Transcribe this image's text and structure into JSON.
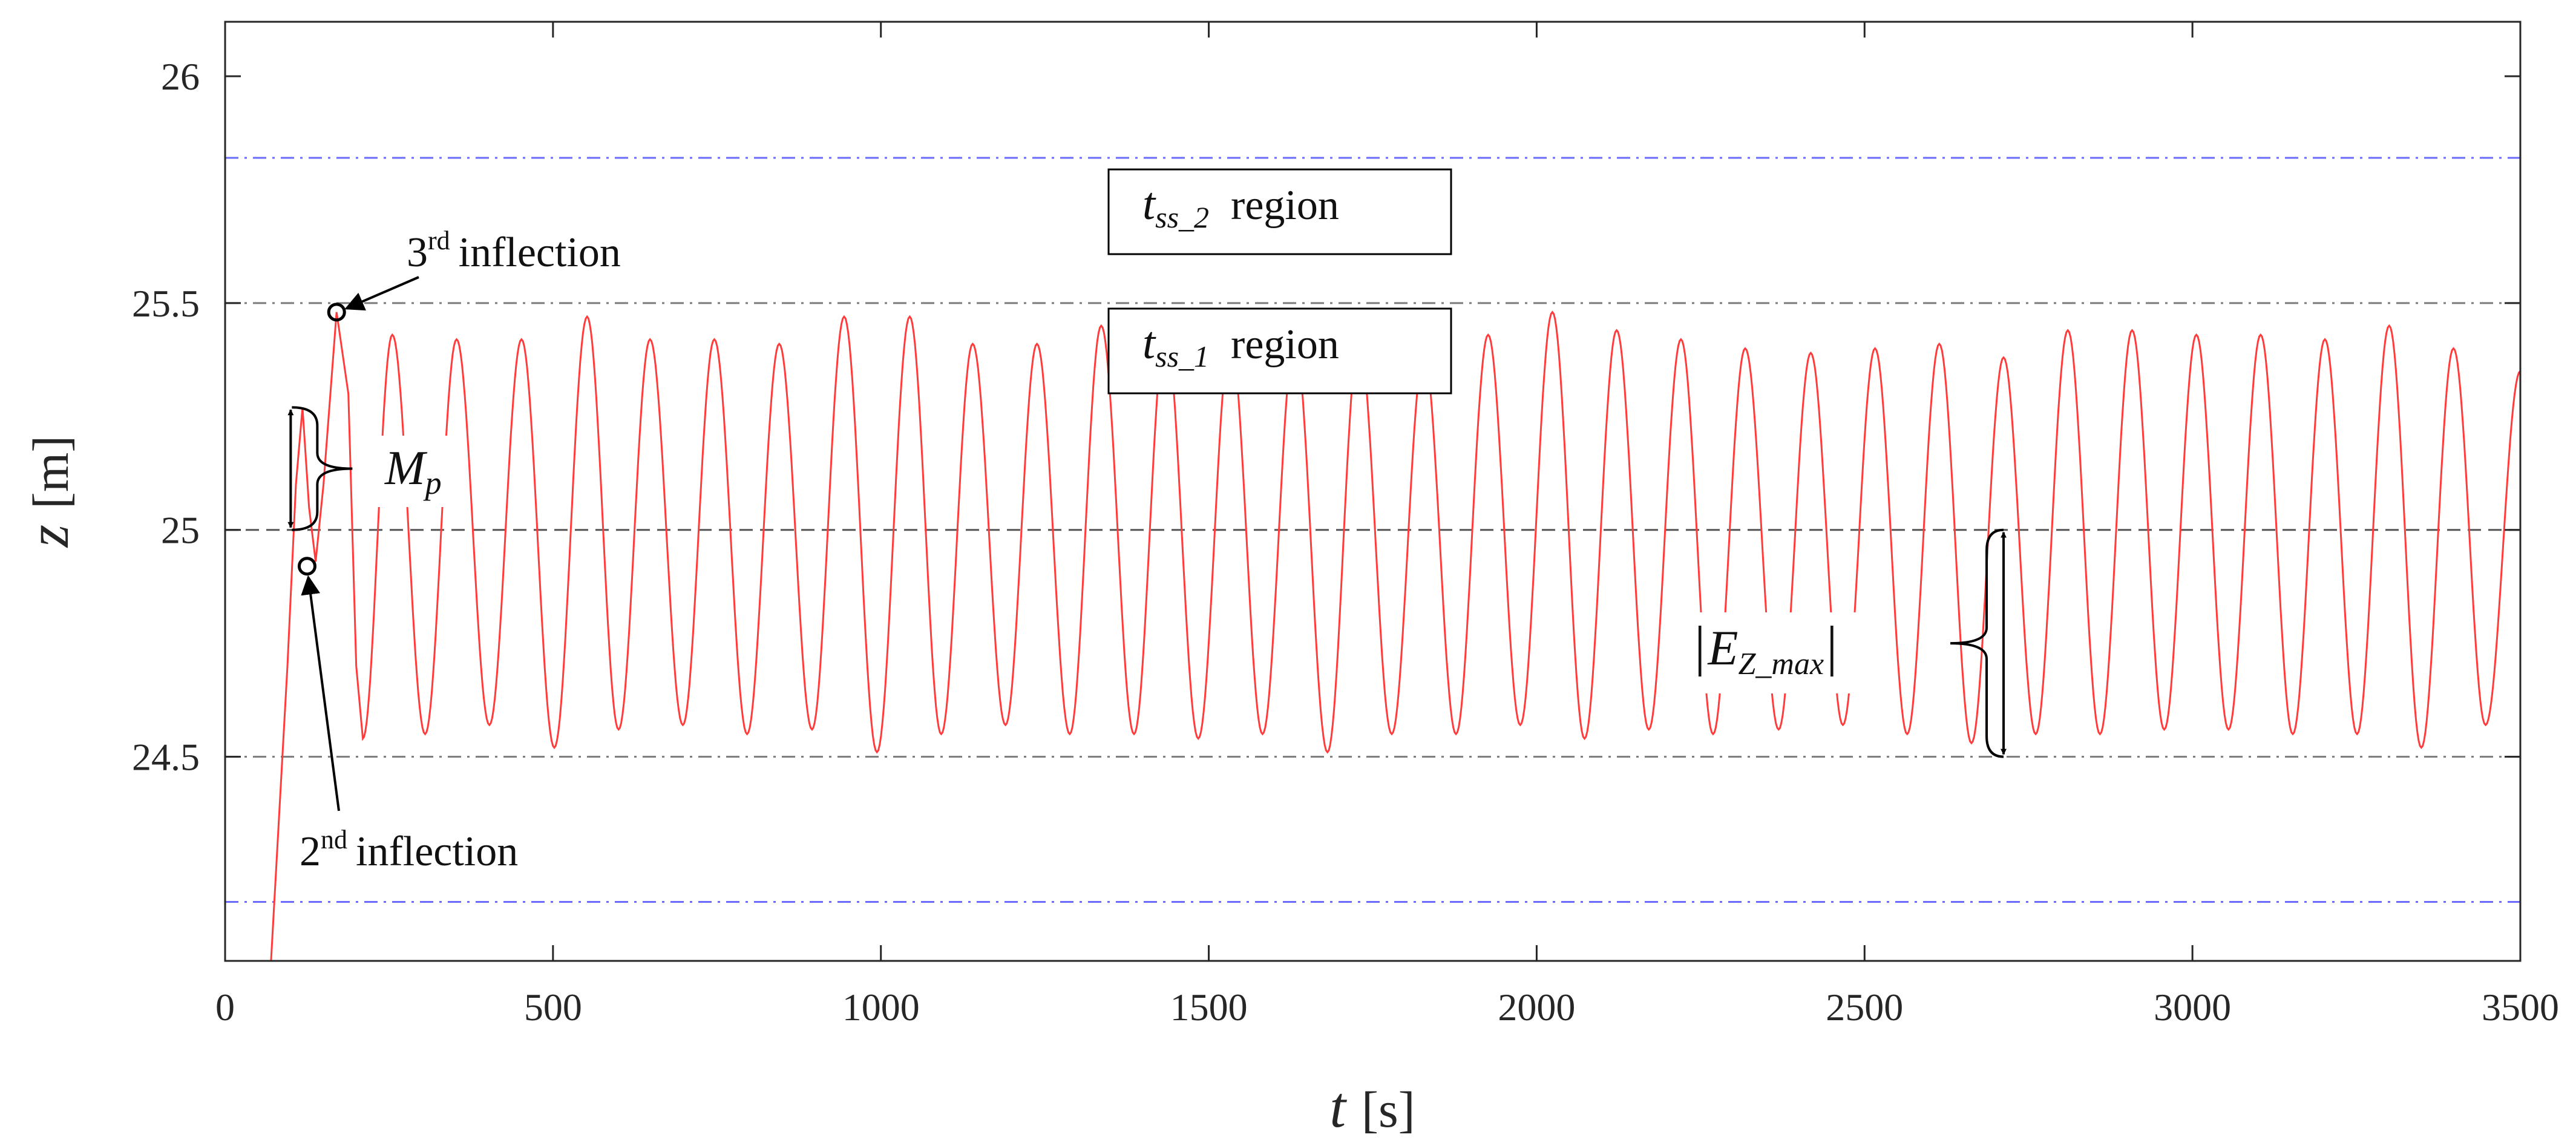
{
  "chart_data": {
    "type": "line",
    "title": "",
    "xlabel": {
      "var": "t",
      "unit": "[s]"
    },
    "ylabel": {
      "var": "z",
      "unit": "[m]"
    },
    "xlim": [
      0,
      3500
    ],
    "ylim": [
      24.05,
      26.12
    ],
    "xticks": [
      0,
      500,
      1000,
      1500,
      2000,
      2500,
      3000,
      3500
    ],
    "xtick_labels": [
      "0",
      "500",
      "1000",
      "1500",
      "2000",
      "2500",
      "3000",
      "3500"
    ],
    "yticks": [
      24.5,
      25,
      25.5,
      26
    ],
    "ytick_labels": [
      "24.5",
      "25",
      "25.5",
      "26"
    ],
    "grid": false,
    "colors": {
      "signal": "#ff3b3b",
      "blue_bounds": "#6b6bff",
      "gray_bounds": "#7a7a7a",
      "setpoint": "#555555"
    },
    "reference_lines": [
      {
        "y": 25.0,
        "style": "dashed",
        "color": "#555555"
      },
      {
        "y": 25.5,
        "style": "dash-dot",
        "color": "#7a7a7a"
      },
      {
        "y": 24.5,
        "style": "dash-dot",
        "color": "#7a7a7a"
      },
      {
        "y": 25.82,
        "style": "dash-dot",
        "color": "#6b6bff"
      },
      {
        "y": 24.18,
        "style": "dash-dot",
        "color": "#6b6bff"
      }
    ],
    "series": [
      {
        "color": "#ff3b3b",
        "initial_rise": [
          [
            70,
            24.05
          ],
          [
            95,
            24.7
          ],
          [
            108,
            25.1
          ],
          [
            118,
            25.27
          ],
          [
            128,
            25.05
          ],
          [
            138,
            24.93
          ],
          [
            150,
            25.1
          ],
          [
            170,
            25.48
          ],
          [
            188,
            25.3
          ],
          [
            200,
            24.7
          ],
          [
            210,
            24.54
          ]
        ],
        "peaks": [
          [
            255,
            25.43
          ],
          [
            353,
            25.42
          ],
          [
            452,
            25.42
          ],
          [
            552,
            25.47
          ],
          [
            648,
            25.42
          ],
          [
            746,
            25.42
          ],
          [
            845,
            25.41
          ],
          [
            944,
            25.47
          ],
          [
            1044,
            25.47
          ],
          [
            1140,
            25.41
          ],
          [
            1238,
            25.41
          ],
          [
            1336,
            25.45
          ],
          [
            1434,
            25.44
          ],
          [
            1533,
            25.42
          ],
          [
            1631,
            25.42
          ],
          [
            1729,
            25.42
          ],
          [
            1828,
            25.39
          ],
          [
            1926,
            25.43
          ],
          [
            2024,
            25.48
          ],
          [
            2122,
            25.44
          ],
          [
            2220,
            25.42
          ],
          [
            2318,
            25.4
          ],
          [
            2418,
            25.39
          ],
          [
            2516,
            25.4
          ],
          [
            2614,
            25.41
          ],
          [
            2712,
            25.38
          ],
          [
            2810,
            25.44
          ],
          [
            2908,
            25.44
          ],
          [
            3006,
            25.43
          ],
          [
            3104,
            25.43
          ],
          [
            3202,
            25.42
          ],
          [
            3300,
            25.45
          ],
          [
            3398,
            25.4
          ]
        ],
        "troughs": [
          [
            305,
            24.55
          ],
          [
            403,
            24.57
          ],
          [
            502,
            24.52
          ],
          [
            600,
            24.56
          ],
          [
            698,
            24.57
          ],
          [
            796,
            24.55
          ],
          [
            895,
            24.56
          ],
          [
            994,
            24.51
          ],
          [
            1092,
            24.55
          ],
          [
            1190,
            24.57
          ],
          [
            1288,
            24.55
          ],
          [
            1386,
            24.55
          ],
          [
            1484,
            24.54
          ],
          [
            1582,
            24.55
          ],
          [
            1681,
            24.51
          ],
          [
            1779,
            24.55
          ],
          [
            1877,
            24.55
          ],
          [
            1975,
            24.57
          ],
          [
            2073,
            24.54
          ],
          [
            2171,
            24.56
          ],
          [
            2269,
            24.55
          ],
          [
            2369,
            24.56
          ],
          [
            2467,
            24.57
          ],
          [
            2565,
            24.55
          ],
          [
            2663,
            24.53
          ],
          [
            2761,
            24.55
          ],
          [
            2859,
            24.55
          ],
          [
            2957,
            24.56
          ],
          [
            3055,
            24.56
          ],
          [
            3153,
            24.55
          ],
          [
            3251,
            24.55
          ],
          [
            3349,
            24.52
          ],
          [
            3447,
            24.57
          ]
        ],
        "end": [
          3500,
          25.35
        ]
      }
    ],
    "annotations": {
      "region2": {
        "var": "t",
        "sub": "ss_2",
        "text": "region"
      },
      "region1": {
        "var": "t",
        "sub": "ss_1",
        "text": "region"
      },
      "third_inflection": {
        "num": "3",
        "sup": "rd",
        "text": "inflection",
        "point": [
          170,
          25.48
        ]
      },
      "second_inflection": {
        "num": "2",
        "sup": "nd",
        "text": "inflection",
        "point": [
          125,
          24.92
        ]
      },
      "overshoot": {
        "var": "M",
        "sub": "p",
        "y_from": 25.0,
        "y_to": 25.27,
        "x": 100
      },
      "max_error": {
        "bar": "|",
        "var": "E",
        "sub": "Z_max",
        "y_from": 24.5,
        "y_to": 25.0,
        "x": 2712
      }
    }
  }
}
